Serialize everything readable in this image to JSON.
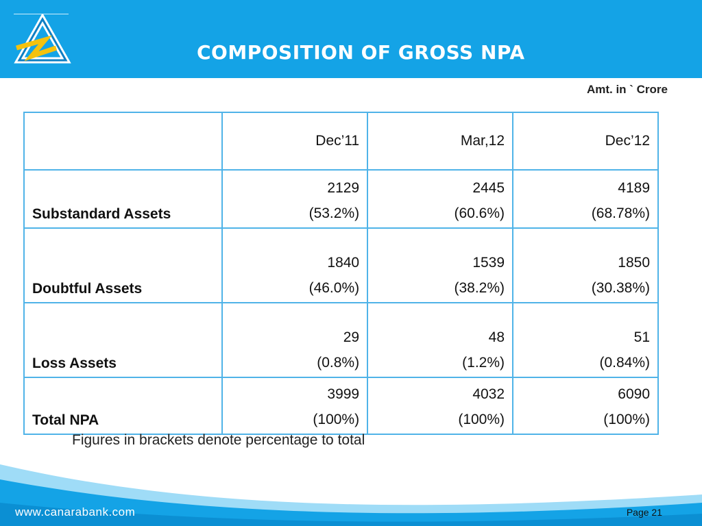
{
  "header": {
    "title": "COMPOSITION OF GROSS NPA",
    "brand_color": "#14a3e6",
    "logo": "canara-bank-logo"
  },
  "amount_note": "Amt. in ` Crore",
  "table": {
    "columns": [
      "",
      "Dec’11",
      "Mar,12",
      "Dec’12"
    ],
    "rows": [
      {
        "label": "Substandard Assets",
        "values": [
          {
            "amount": "2129",
            "percent": "(53.2%)"
          },
          {
            "amount": "2445",
            "percent": "(60.6%)"
          },
          {
            "amount": "4189",
            "percent": "(68.78%)"
          }
        ]
      },
      {
        "label": "Doubtful Assets",
        "values": [
          {
            "amount": "1840",
            "percent": "(46.0%)"
          },
          {
            "amount": "1539",
            "percent": "(38.2%)"
          },
          {
            "amount": "1850",
            "percent": "(30.38%)"
          }
        ]
      },
      {
        "label": "Loss Assets",
        "values": [
          {
            "amount": "29",
            "percent": "(0.8%)"
          },
          {
            "amount": "48",
            "percent": "(1.2%)"
          },
          {
            "amount": "51",
            "percent": "(0.84%)"
          }
        ]
      },
      {
        "label": "Total NPA",
        "values": [
          {
            "amount": "3999",
            "percent": "(100%)"
          },
          {
            "amount": "4032",
            "percent": "(100%)"
          },
          {
            "amount": "6090",
            "percent": "(100%)"
          }
        ]
      }
    ]
  },
  "footnote": "Figures in brackets denote percentage to total",
  "footer": {
    "website": "www.canarabank.com",
    "page": "Page  21"
  }
}
